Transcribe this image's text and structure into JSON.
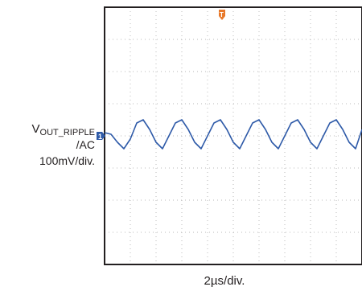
{
  "chart_data": {
    "type": "line",
    "title": "",
    "channel_label": {
      "prefix": "V",
      "subscript": "OUT_RIPPLE",
      "coupling": "/AC"
    },
    "vertical_scale": "100mV/div.",
    "horizontal_scale": "2µs/div.",
    "trace_color": "#2e5aa8",
    "grid": true,
    "grid_divisions": {
      "x": 10,
      "y": 8
    },
    "channel_marker": "1",
    "trigger_marker": "T",
    "trigger_marker_color": "#e8792b",
    "x_unit": "µs",
    "y_unit": "mV",
    "xlim": [
      0,
      20
    ],
    "ylim": [
      -400,
      400
    ],
    "series": [
      {
        "x": [
          0.0,
          0.5,
          1.0,
          1.5,
          2.0,
          2.5,
          3.0,
          3.5,
          4.0,
          4.5,
          5.0,
          5.5,
          6.0,
          6.5,
          7.0,
          7.5,
          8.0,
          8.5,
          9.0,
          9.5,
          10.0,
          10.5,
          11.0,
          11.5,
          12.0,
          12.5,
          13.0,
          13.5,
          14.0,
          14.5,
          15.0,
          15.5,
          16.0,
          16.5,
          17.0,
          17.5,
          18.0,
          18.5,
          19.0,
          19.5,
          20.0
        ],
        "values": [
          10,
          5,
          -20,
          -40,
          -10,
          40,
          50,
          20,
          -20,
          -40,
          0,
          40,
          50,
          20,
          -20,
          -40,
          0,
          40,
          50,
          20,
          -20,
          -40,
          0,
          40,
          50,
          20,
          -20,
          -40,
          0,
          40,
          50,
          20,
          -20,
          -40,
          0,
          40,
          50,
          20,
          -20,
          -40,
          20
        ]
      }
    ]
  }
}
